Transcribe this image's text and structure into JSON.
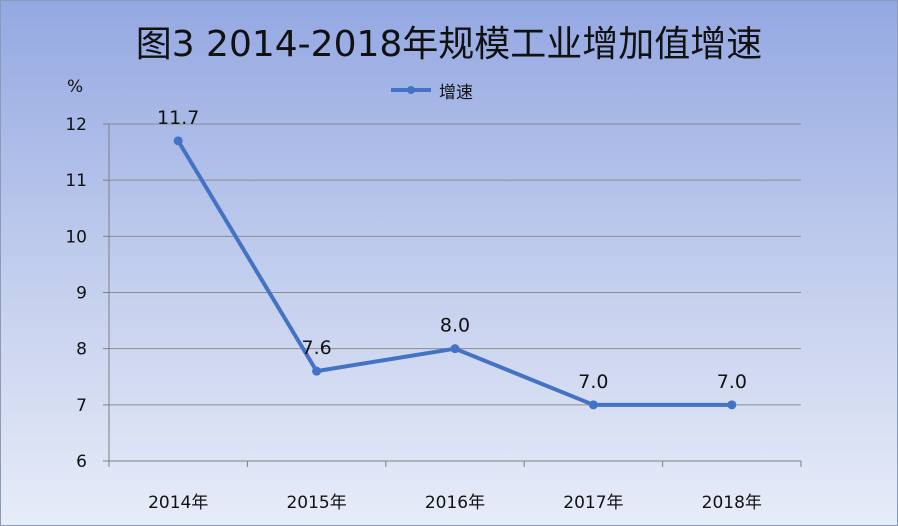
{
  "chart_data": {
    "type": "line",
    "title": "图3  2014-2018年规模工业增加值增速",
    "ylabel": "%",
    "categories": [
      "2014年",
      "2015年",
      "2016年",
      "2017年",
      "2018年"
    ],
    "series": [
      {
        "name": "增速",
        "values": [
          11.7,
          7.6,
          8.0,
          7.0,
          7.0
        ],
        "labels": [
          "11.7",
          "7.6",
          "8.0",
          "7.0",
          "7.0"
        ],
        "color": "#4472c4"
      }
    ],
    "ylim": [
      6,
      12
    ],
    "yticks": [
      6,
      7,
      8,
      9,
      10,
      11,
      12
    ],
    "grid": true,
    "legend_position": "top-center"
  }
}
